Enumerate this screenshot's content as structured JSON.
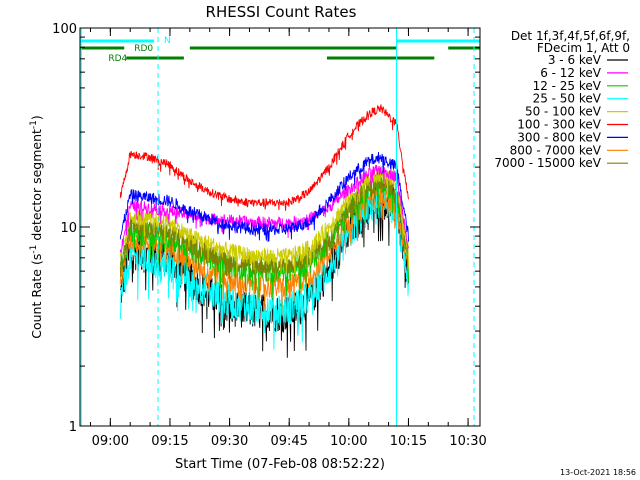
{
  "chart_data": {
    "type": "line",
    "title": "RHESSI Count Rates",
    "xlabel": "Start Time (07-Feb-08 08:52:22)",
    "ylabel_prefix": "Count Rate (s",
    "ylabel_sup": "-1",
    "ylabel_mid": " detector segment",
    "ylabel_sup2": "-1",
    "ylabel_suffix": ")",
    "yscale": "log",
    "ylim": [
      1,
      100
    ],
    "xlim": [
      "08:52:22",
      "10:33:00"
    ],
    "x_ticks": [
      "09:00",
      "09:15",
      "09:30",
      "09:45",
      "10:00",
      "10:15",
      "10:30"
    ],
    "y_ticks": [
      "1",
      "10",
      "100"
    ],
    "legend_header": [
      "Det 1f,3f,4f,5f,6f,9f,",
      "FDecim 1, Att 0"
    ],
    "legend_position": "right",
    "timestamp": "13-Oct-2021 18:56",
    "flags": {
      "rd0_label": "RD0",
      "rd4_label": "RD4",
      "n_label": "N"
    },
    "time_key": [
      "09:02:30",
      "09:05:00",
      "09:10:00",
      "09:15:00",
      "09:20:00",
      "09:25:00",
      "09:30:00",
      "09:35:00",
      "09:40:00",
      "09:45:00",
      "09:50:00",
      "09:55:00",
      "10:00:00",
      "10:05:00",
      "10:08:00",
      "10:12:00",
      "10:15:00"
    ],
    "series": [
      {
        "name": "3 - 6 keV",
        "color": "#000000",
        "values": [
          4.5,
          7.6,
          7.2,
          6.8,
          5.5,
          4.6,
          4.0,
          3.8,
          3.7,
          3.7,
          4.2,
          6.2,
          9.5,
          12.8,
          13.8,
          12.5,
          5.5
        ]
      },
      {
        "name": "6 - 12 keV",
        "color": "#ff00ff",
        "values": [
          7.5,
          12.8,
          12.5,
          12.0,
          11.5,
          11.0,
          10.8,
          10.6,
          10.5,
          10.5,
          11.0,
          12.5,
          15.5,
          18.5,
          19.5,
          18.0,
          8.0
        ]
      },
      {
        "name": "12 - 25 keV",
        "color": "#00cc00",
        "values": [
          5.8,
          9.7,
          9.3,
          8.8,
          7.8,
          7.0,
          6.4,
          6.1,
          6.0,
          6.0,
          6.6,
          8.6,
          12.0,
          15.5,
          16.5,
          15.0,
          7.0
        ]
      },
      {
        "name": "25 - 50 keV",
        "color": "#00ffff",
        "values": [
          4.3,
          7.2,
          6.8,
          6.3,
          5.5,
          4.7,
          4.2,
          4.0,
          3.9,
          3.9,
          4.4,
          6.1,
          9.2,
          12.5,
          13.5,
          12.2,
          5.2
        ]
      },
      {
        "name": "50 - 100 keV",
        "color": "#cccc00",
        "values": [
          6.8,
          11.4,
          11.0,
          10.5,
          9.0,
          8.2,
          7.5,
          7.2,
          7.1,
          7.1,
          7.8,
          10.0,
          13.8,
          17.5,
          18.5,
          17.0,
          7.6
        ]
      },
      {
        "name": "100 - 300 keV",
        "color": "#ff0000",
        "values": [
          14.0,
          23.3,
          22.5,
          20.5,
          17.0,
          15.0,
          13.8,
          13.3,
          13.2,
          13.3,
          15.0,
          20.0,
          29.0,
          37.0,
          39.5,
          33.0,
          14.0
        ]
      },
      {
        "name": "300 - 800 keV",
        "color": "#0000ff",
        "values": [
          8.8,
          14.5,
          14.0,
          13.5,
          12.0,
          11.0,
          10.2,
          9.8,
          9.7,
          9.8,
          10.6,
          13.5,
          17.8,
          21.5,
          22.5,
          20.0,
          9.0
        ]
      },
      {
        "name": "800 - 7000 keV",
        "color": "#ff8000",
        "values": [
          5.5,
          8.9,
          8.4,
          7.9,
          6.8,
          6.0,
          5.4,
          5.1,
          5.0,
          5.0,
          5.6,
          7.6,
          10.8,
          13.6,
          14.4,
          13.0,
          6.0
        ]
      },
      {
        "name": "7000 - 15000 keV",
        "color": "#808000",
        "values": [
          6.2,
          10.3,
          9.8,
          9.3,
          8.2,
          7.4,
          6.8,
          6.5,
          6.4,
          6.4,
          7.0,
          9.0,
          12.6,
          16.0,
          17.0,
          15.5,
          6.8
        ]
      }
    ]
  }
}
